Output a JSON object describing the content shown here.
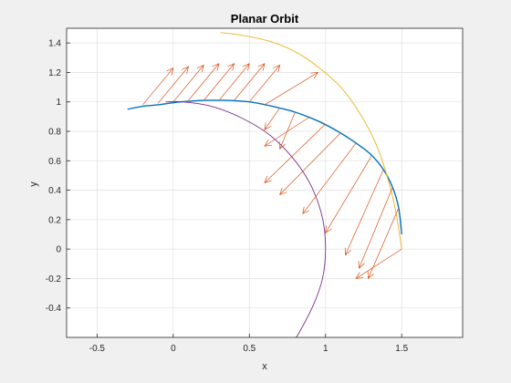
{
  "chart_data": {
    "type": "line",
    "title": "Planar Orbit",
    "xlabel": "x",
    "ylabel": "y",
    "xlim": [
      -0.7,
      1.9
    ],
    "ylim": [
      -0.6,
      1.5
    ],
    "grid": true,
    "xticks": [
      -0.5,
      0,
      0.5,
      1,
      1.5
    ],
    "xtick_labels": [
      "-0.5",
      "0",
      "0.5",
      "1",
      "1.5"
    ],
    "yticks": [
      -0.4,
      -0.2,
      0,
      0.2,
      0.4,
      0.6,
      0.8,
      1,
      1.2,
      1.4
    ],
    "ytick_labels": [
      "-0.4",
      "-0.2",
      "0",
      "0.2",
      "0.4",
      "0.6",
      "0.8",
      "1",
      "1.2",
      "1.4"
    ],
    "series": [
      {
        "color": "#0072BD",
        "style": "line",
        "x": [
          1.5,
          1.48,
          1.44,
          1.38,
          1.3,
          1.2,
          1.08,
          0.95,
          0.8,
          0.65,
          0.5,
          0.35,
          0.2,
          0.05,
          -0.1,
          -0.2,
          -0.3
        ],
        "y": [
          0.1,
          0.28,
          0.42,
          0.54,
          0.64,
          0.72,
          0.8,
          0.87,
          0.93,
          0.97,
          1.0,
          1.01,
          1.01,
          1.0,
          0.98,
          0.97,
          0.95
        ]
      },
      {
        "color": "#EDB120",
        "style": "line",
        "x": [
          1.5,
          1.46,
          1.4,
          1.32,
          1.22,
          1.1,
          0.96,
          0.82,
          0.67,
          0.52,
          0.4,
          0.31
        ],
        "y": [
          0.0,
          0.26,
          0.51,
          0.74,
          0.93,
          1.1,
          1.23,
          1.33,
          1.4,
          1.44,
          1.46,
          1.47
        ]
      },
      {
        "color": "#7E2F8E",
        "style": "line",
        "x": [
          -0.05,
          0.06,
          0.25,
          0.45,
          0.64,
          0.8,
          0.91,
          0.98,
          1.0,
          0.98,
          0.92,
          0.82,
          0.8
        ],
        "y": [
          1.0,
          1.0,
          0.97,
          0.89,
          0.77,
          0.6,
          0.42,
          0.21,
          0.0,
          -0.2,
          -0.38,
          -0.58,
          -0.6
        ]
      },
      {
        "color": "#D95319",
        "style": "arrows",
        "x": [
          -0.2,
          -0.1,
          0.0,
          0.1,
          0.2,
          0.3,
          0.4,
          0.5,
          0.6,
          0.7,
          0.8,
          0.9,
          1.0,
          1.1,
          1.2,
          1.3,
          1.38,
          1.44,
          1.48,
          1.5
        ],
        "y": [
          0.98,
          0.99,
          1.0,
          1.01,
          1.01,
          1.01,
          1.01,
          1.0,
          0.98,
          0.96,
          0.93,
          0.9,
          0.85,
          0.79,
          0.72,
          0.63,
          0.54,
          0.42,
          0.28,
          0.0
        ],
        "u": [
          0.2,
          0.2,
          0.2,
          0.2,
          0.2,
          0.2,
          0.2,
          0.2,
          0.35,
          -0.1,
          -0.1,
          -0.3,
          -0.4,
          -0.4,
          -0.35,
          -0.3,
          -0.25,
          -0.22,
          -0.2,
          -0.3
        ],
        "v": [
          0.25,
          0.25,
          0.25,
          0.25,
          0.25,
          0.25,
          0.25,
          0.25,
          0.22,
          -0.15,
          -0.25,
          -0.2,
          -0.4,
          -0.42,
          -0.48,
          -0.52,
          -0.58,
          -0.55,
          -0.48,
          -0.2
        ]
      }
    ]
  }
}
